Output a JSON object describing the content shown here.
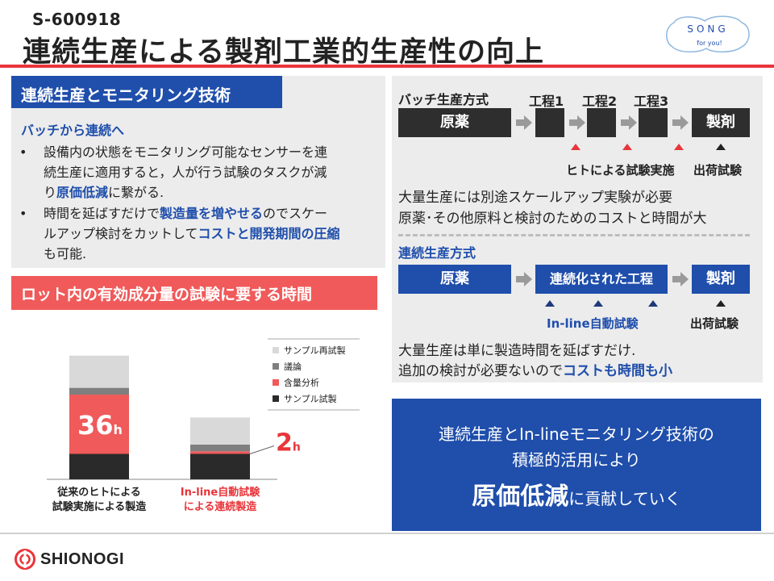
{
  "header": {
    "code": "S-600918",
    "title": "連続生産による製剤工業的生産性の向上",
    "logo_song": "SONG",
    "logo_tagline": "for you!"
  },
  "left": {
    "heading": "連続生産とモニタリング技術",
    "subheading": "バッチから連続へ",
    "bullet_symbol": "•",
    "bullet1": {
      "line1": "設備内の状態をモニタリング可能なセンサーを連",
      "line2": "続生産に適用すると，人が行う試験のタスクが減",
      "line3_pre": "り",
      "line3_hl": "原価低減",
      "line3_post": "に繋がる."
    },
    "bullet2": {
      "line1_pre": "時間を延ばすだけで",
      "line1_hl": "製造量を増やせる",
      "line1_post": "のでスケー",
      "line2_pre": "ルアップ検討をカットして",
      "line2_hl": "コストと開発期間の圧縮",
      "line3": "も可能."
    }
  },
  "lot": {
    "heading": "ロット内の有効成分量の試験に要する時間"
  },
  "chart_data": {
    "type": "bar",
    "stacked": true,
    "categories": [
      "従来のヒトによる試験実施による製造",
      "In-line自動試験による連続製造"
    ],
    "category_lines": [
      [
        "従来のヒトによる",
        "試験実施による製造"
      ],
      [
        "In-line自動試験",
        "による連続製造"
      ]
    ],
    "category_colors": [
      "#222222",
      "#e8353a"
    ],
    "series": [
      {
        "name": "サンプル試製",
        "color": "#2a2a2a",
        "values": [
          3,
          3
        ]
      },
      {
        "name": "含量分析",
        "color": "#f05a5a",
        "values": [
          7,
          0.3
        ]
      },
      {
        "name": "議論",
        "color": "#7f7f7f",
        "values": [
          0.8,
          0.8
        ]
      },
      {
        "name": "サンプル再試製",
        "color": "#d9d9d9",
        "values": [
          3.8,
          3.2
        ]
      }
    ],
    "legend_order": [
      "サンプル再試製",
      "議論",
      "含量分析",
      "サンプル試製"
    ],
    "annotations": [
      {
        "bar": 0,
        "value": "36",
        "unit": "h"
      },
      {
        "bar": 1,
        "value": "2",
        "unit": "h"
      }
    ],
    "legend_position": "top-right",
    "grid": false
  },
  "batch": {
    "title": "バッチ生産方式",
    "step1": "工程1",
    "step2": "工程2",
    "step3": "工程3",
    "raw": "原薬",
    "product": "製剤",
    "test_human": "ヒトによる試験実施",
    "test_ship": "出荷試験",
    "note1": "大量生産には別途スケールアップ実験が必要",
    "note2": "原薬･その他原料と検討のためのコストと時間が大"
  },
  "continuous": {
    "title": "連続生産方式",
    "raw": "原薬",
    "process": "連続化された工程",
    "product": "製剤",
    "test_inline": "In-line自動試験",
    "test_ship": "出荷試験",
    "note1": "大量生産は単に製造時間を延ばすだけ.",
    "note2_pre": "追加の検討が必要ないので",
    "note2_hl": "コストも時間も小"
  },
  "conclusion": {
    "line1": "連続生産とIn-lineモニタリング技術の",
    "line2": "積極的活用により",
    "line3_hl": "原価低減",
    "line3_post": "に貢献していく"
  },
  "footer": {
    "company": "SHIONOGI"
  },
  "colors": {
    "accent_red": "#e8353a",
    "brand_blue": "#1f4eab",
    "panel_gray": "#ececec"
  }
}
